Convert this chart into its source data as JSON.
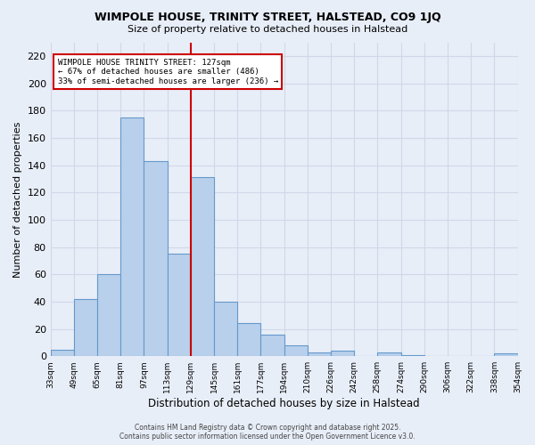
{
  "title": "WIMPOLE HOUSE, TRINITY STREET, HALSTEAD, CO9 1JQ",
  "subtitle": "Size of property relative to detached houses in Halstead",
  "xlabel": "Distribution of detached houses by size in Halstead",
  "ylabel": "Number of detached properties",
  "bar_values": [
    5,
    42,
    60,
    175,
    143,
    75,
    131,
    40,
    24,
    16,
    8,
    3,
    4,
    0,
    3,
    1,
    0,
    0,
    0,
    2
  ],
  "bin_labels": [
    "33sqm",
    "49sqm",
    "65sqm",
    "81sqm",
    "97sqm",
    "113sqm",
    "129sqm",
    "145sqm",
    "161sqm",
    "177sqm",
    "194sqm",
    "210sqm",
    "226sqm",
    "242sqm",
    "258sqm",
    "274sqm",
    "290sqm",
    "306sqm",
    "322sqm",
    "338sqm",
    "354sqm"
  ],
  "bar_color": "#b8d0eb",
  "bar_edge_color": "#6699cc",
  "vline_color": "#cc0000",
  "annotation_text": "WIMPOLE HOUSE TRINITY STREET: 127sqm\n← 67% of detached houses are smaller (486)\n33% of semi-detached houses are larger (236) →",
  "annotation_box_color": "#ffffff",
  "annotation_box_edge": "#cc0000",
  "ylim": [
    0,
    230
  ],
  "yticks": [
    0,
    20,
    40,
    60,
    80,
    100,
    120,
    140,
    160,
    180,
    200,
    220
  ],
  "background_color": "#e8eef8",
  "grid_color": "#d0d8e8",
  "footnote": "Contains HM Land Registry data © Crown copyright and database right 2025.\nContains public sector information licensed under the Open Government Licence v3.0."
}
